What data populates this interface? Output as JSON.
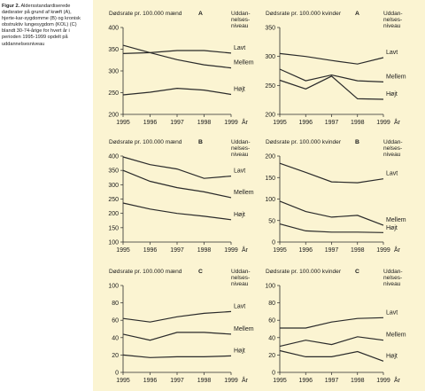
{
  "caption": {
    "figure_label": "Figur 2.",
    "text": "Aldersstandardiserede dødsrater på grund af kræft (A), hjerte-kar-sygdomme (B) og kronisk obstruktiv lungesygdom (KOL) (C) blandt 30-74-årige for hvert år i perioden 1995-1999 opdelt på uddannelsesniveau"
  },
  "colors": {
    "background": "#fbf4d2",
    "line": "#2a2a2a"
  },
  "chart_data": [
    {
      "type": "line",
      "panel": "A",
      "ylabel": "Dødsrate pr. 100.000 mænd",
      "legend_title": "Uddan-nelses-niveau",
      "xlabel": "År",
      "x": [
        1995,
        1996,
        1997,
        1998,
        1999
      ],
      "ylim": [
        200,
        400
      ],
      "yticks": [
        200,
        250,
        300,
        350,
        400
      ],
      "series": [
        {
          "name": "Lavt",
          "values": [
            340,
            342,
            347,
            347,
            341
          ]
        },
        {
          "name": "Mellem",
          "values": [
            359,
            342,
            326,
            314,
            307
          ]
        },
        {
          "name": "Højt",
          "values": [
            245,
            251,
            260,
            256,
            246
          ]
        }
      ]
    },
    {
      "type": "line",
      "panel": "A",
      "ylabel": "Dødsrate pr. 100.000 kvinder",
      "legend_title": "Uddan-nelses-niveau",
      "xlabel": "År",
      "x": [
        1995,
        1996,
        1997,
        1998,
        1999
      ],
      "ylim": [
        200,
        350
      ],
      "yticks": [
        200,
        250,
        300,
        350
      ],
      "series": [
        {
          "name": "Lavt",
          "values": [
            305,
            300,
            293,
            287,
            298
          ]
        },
        {
          "name": "Mellem",
          "values": [
            278,
            258,
            268,
            258,
            256
          ]
        },
        {
          "name": "Højt",
          "values": [
            259,
            244,
            266,
            227,
            226
          ]
        }
      ]
    },
    {
      "type": "line",
      "panel": "B",
      "ylabel": "Dødsrate pr. 100.000 mænd",
      "legend_title": "Uddan-nelses-niveau",
      "xlabel": "År",
      "x": [
        1995,
        1996,
        1997,
        1998,
        1999
      ],
      "ylim": [
        100,
        400
      ],
      "yticks": [
        100,
        150,
        200,
        250,
        300,
        350,
        400
      ],
      "series": [
        {
          "name": "Lavt",
          "values": [
            397,
            370,
            355,
            322,
            330
          ]
        },
        {
          "name": "Mellem",
          "values": [
            350,
            312,
            290,
            275,
            255
          ]
        },
        {
          "name": "Højt",
          "values": [
            236,
            215,
            200,
            190,
            178
          ]
        }
      ]
    },
    {
      "type": "line",
      "panel": "B",
      "ylabel": "Dødsrate pr. 100.000 kvinder",
      "legend_title": "Uddan-nelses-niveau",
      "xlabel": "År",
      "x": [
        1995,
        1996,
        1997,
        1998,
        1999
      ],
      "ylim": [
        0,
        200
      ],
      "yticks": [
        0,
        50,
        100,
        150,
        200
      ],
      "series": [
        {
          "name": "Lavt",
          "values": [
            183,
            162,
            140,
            138,
            147
          ]
        },
        {
          "name": "Mellem",
          "values": [
            95,
            71,
            58,
            62,
            39
          ]
        },
        {
          "name": "Højt",
          "values": [
            42,
            26,
            23,
            23,
            22
          ]
        }
      ]
    },
    {
      "type": "line",
      "panel": "C",
      "ylabel": "Dødsrate pr. 100.000 mænd",
      "legend_title": "Uddan-nelses-niveau",
      "xlabel": "År",
      "x": [
        1995,
        1996,
        1997,
        1998,
        1999
      ],
      "ylim": [
        0,
        100
      ],
      "yticks": [
        0,
        20,
        40,
        60,
        80,
        100
      ],
      "series": [
        {
          "name": "Lavt",
          "values": [
            62,
            58,
            64,
            68,
            70
          ]
        },
        {
          "name": "Mellem",
          "values": [
            44,
            37,
            46,
            46,
            44
          ]
        },
        {
          "name": "Højt",
          "values": [
            20,
            17,
            18,
            18,
            19
          ]
        }
      ]
    },
    {
      "type": "line",
      "panel": "C",
      "ylabel": "Dødsrate pr. 100.000 kvinder",
      "legend_title": "Uddan-nelses-niveau",
      "xlabel": "År",
      "x": [
        1995,
        1996,
        1997,
        1998,
        1999
      ],
      "ylim": [
        0,
        100
      ],
      "yticks": [
        0,
        20,
        40,
        60,
        80,
        100
      ],
      "series": [
        {
          "name": "Lavt",
          "values": [
            51,
            51,
            58,
            62,
            63
          ]
        },
        {
          "name": "Mellem",
          "values": [
            30,
            37,
            32,
            41,
            37
          ]
        },
        {
          "name": "Højt",
          "values": [
            25,
            18,
            18,
            24,
            13
          ]
        }
      ]
    }
  ]
}
